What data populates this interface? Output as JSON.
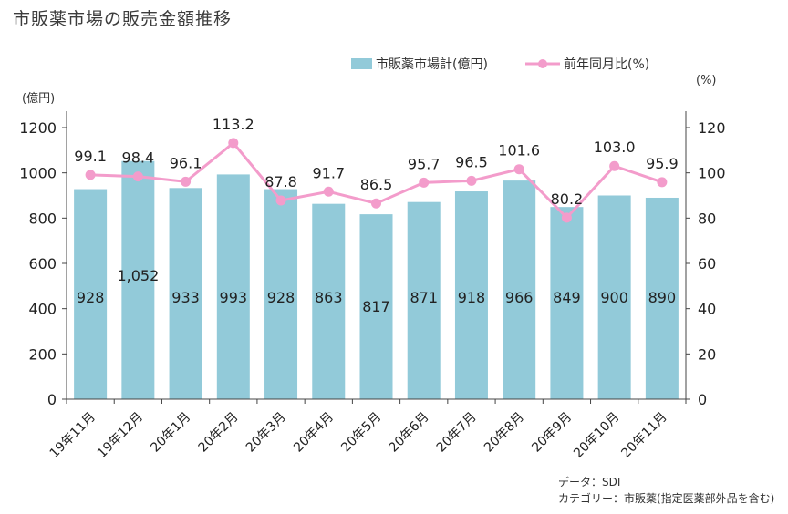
{
  "title": "市販薬市場の販売金額推移",
  "source": {
    "line1": "データ：SDI",
    "line2": "カテゴリー：市販薬(指定医薬部外品を含む)"
  },
  "colors": {
    "bar": "#92cad9",
    "line": "#f39ccb",
    "axis": "#444444"
  },
  "chart_data": {
    "type": "bar",
    "categories": [
      "19年11月",
      "19年12月",
      "20年1月",
      "20年2月",
      "20年3月",
      "20年4月",
      "20年5月",
      "20年6月",
      "20年7月",
      "20年8月",
      "20年9月",
      "20年10月",
      "20年11月"
    ],
    "series": [
      {
        "name": "市販薬市場計(億円)",
        "type": "bar",
        "axis": "left",
        "values": [
          928,
          1052,
          933,
          993,
          928,
          863,
          817,
          871,
          918,
          966,
          849,
          900,
          890
        ],
        "labels": [
          "928",
          "1,052",
          "933",
          "993",
          "928",
          "863",
          "817",
          "871",
          "918",
          "966",
          "849",
          "900",
          "890"
        ]
      },
      {
        "name": "前年同月比(%)",
        "type": "line",
        "axis": "right",
        "values": [
          99.1,
          98.4,
          96.1,
          113.2,
          87.8,
          91.7,
          86.5,
          95.7,
          96.5,
          101.6,
          80.2,
          103.0,
          95.9
        ],
        "labels": [
          "99.1",
          "98.4",
          "96.1",
          "113.2",
          "87.8",
          "91.7",
          "86.5",
          "95.7",
          "96.5",
          "101.6",
          "80.2",
          "103.0",
          "95.9"
        ]
      }
    ],
    "y_left": {
      "unit": "(億円)",
      "ylim": [
        0,
        1200
      ],
      "ticks": [
        0,
        200,
        400,
        600,
        800,
        1000,
        1200
      ]
    },
    "y_right": {
      "unit": "(%)",
      "ylim": [
        0,
        120
      ],
      "ticks": [
        0,
        20,
        40,
        60,
        80,
        100,
        120
      ]
    },
    "legend_position": "top-right",
    "grid": false
  }
}
